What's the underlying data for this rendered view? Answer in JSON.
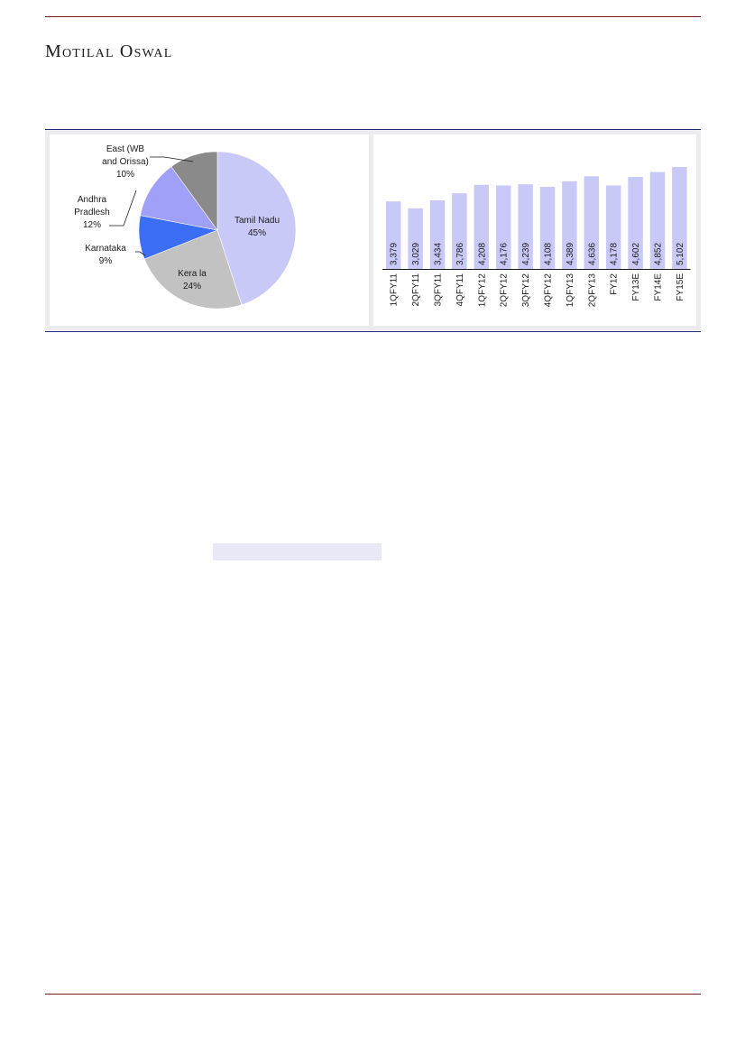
{
  "header": {
    "brand": "Motilal Oswal"
  },
  "chart_data": [
    {
      "type": "pie",
      "slices": [
        {
          "label": "Tamil Nadu",
          "value": 45,
          "value_label": "45%",
          "color": "#c9c9f8"
        },
        {
          "label": "Kerala",
          "label_display": "Kera la",
          "value": 24,
          "value_label": "24%",
          "color": "#c2c2c2"
        },
        {
          "label": "Karnataka",
          "value": 9,
          "value_label": "9%",
          "color": "#3b6ef5"
        },
        {
          "label": "Andhra Pradlesh",
          "label_lines": [
            "Andhra",
            "Pradlesh"
          ],
          "value": 12,
          "value_label": "12%",
          "color": "#a0a0f8"
        },
        {
          "label": "East (WB and Orissa)",
          "label_lines": [
            "East (WB",
            "and Orissa)"
          ],
          "value": 10,
          "value_label": "10%",
          "color": "#8a8a8a"
        }
      ]
    },
    {
      "type": "bar",
      "categories": [
        "1QFY11",
        "2QFY11",
        "3QFY11",
        "4QFY11",
        "1QFY12",
        "2QFY12",
        "3QFY12",
        "4QFY12",
        "1QFY13",
        "2QFY13",
        "FY12",
        "FY13E",
        "FY14E",
        "FY15E"
      ],
      "values": [
        3379,
        3029,
        3434,
        3786,
        4208,
        4176,
        4239,
        4108,
        4389,
        4636,
        4178,
        4602,
        4852,
        5102
      ],
      "value_labels": [
        "3,379",
        "3,029",
        "3,434",
        "3,786",
        "4,208",
        "4,176",
        "4,239",
        "4,108",
        "4,389",
        "4,636",
        "4,178",
        "4,602",
        "4,852",
        "5,102"
      ],
      "bar_color": "#c9c9f8",
      "ylim": [
        0,
        5102
      ]
    }
  ]
}
